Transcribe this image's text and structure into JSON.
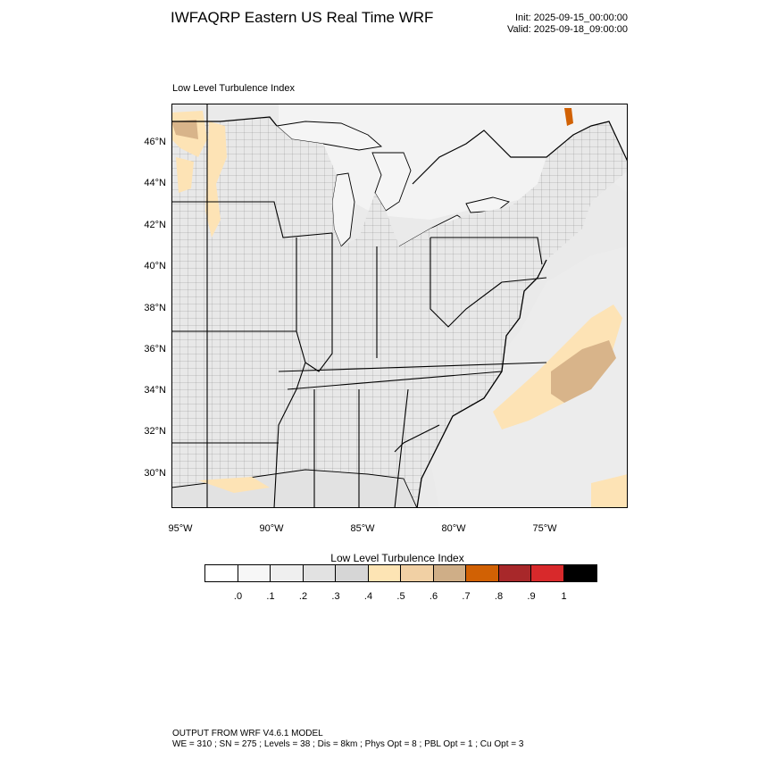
{
  "header": {
    "title": "IWFAQRP Eastern US Real Time WRF",
    "init": "Init: 2025-09-15_00:00:00",
    "valid": "Valid: 2025-09-18_09:00:00"
  },
  "map": {
    "subtitle": "Low Level Turbulence Index",
    "lat_labels": [
      "46°N",
      "44°N",
      "42°N",
      "40°N",
      "38°N",
      "36°N",
      "34°N",
      "32°N",
      "30°N"
    ],
    "lon_labels": [
      "95°W",
      "90°W",
      "85°W",
      "80°W",
      "75°W"
    ],
    "colors": {
      "land_base": "#e4e4e4",
      "water_light": "#f2f2f2",
      "field_mid": "#dcdcdc",
      "tan": "#fde3b5",
      "tan_dark": "#d8b48a"
    }
  },
  "colorbar": {
    "title": "Low Level Turbulence Index",
    "colors": [
      "#ffffff",
      "#f7f7f7",
      "#efefef",
      "#e2e2e2",
      "#d6d6d6",
      "#fde4b4",
      "#f1d0a4",
      "#cfae87",
      "#d16104",
      "#a8282a",
      "#d8292b",
      "#000000"
    ],
    "labels": [
      ".0",
      ".1",
      ".2",
      ".3",
      ".4",
      ".5",
      ".6",
      ".7",
      ".8",
      ".9",
      "1"
    ]
  },
  "footer": {
    "line1": "OUTPUT FROM WRF V4.6.1 MODEL",
    "line2": "WE = 310 ; SN = 275 ; Levels = 38 ; Dis = 8km ; Phys Opt = 8 ; PBL Opt = 1 ; Cu Opt = 3"
  }
}
